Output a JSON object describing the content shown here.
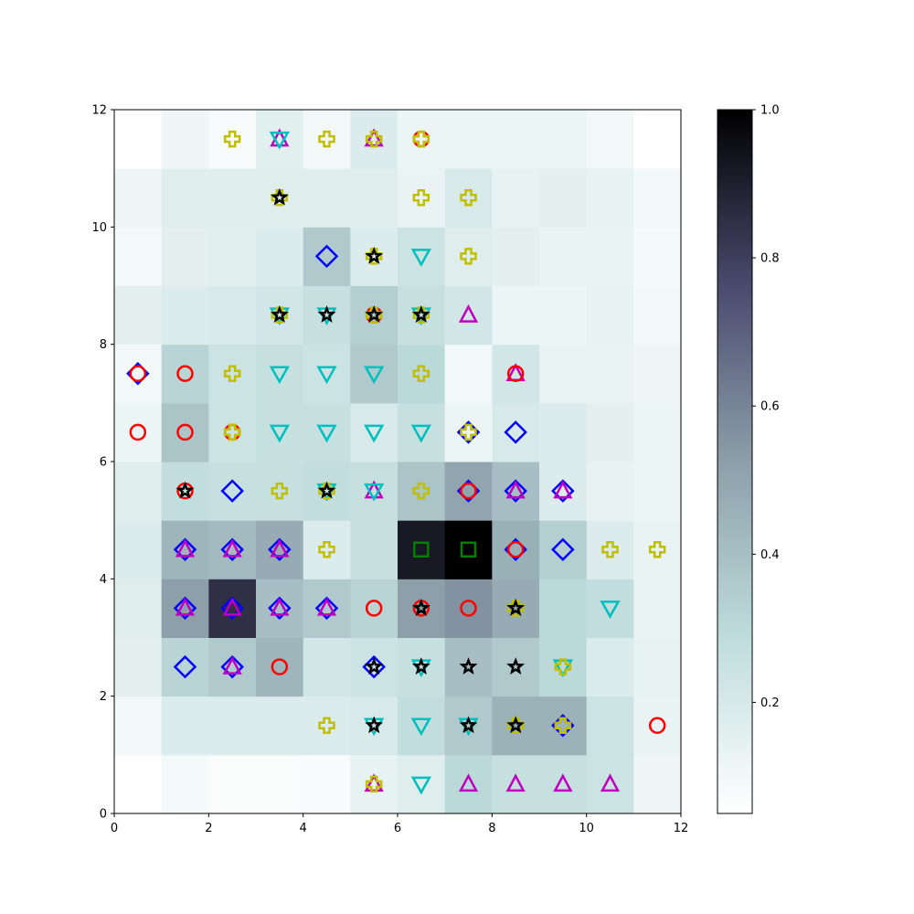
{
  "chart_data": {
    "type": "heatmap",
    "title": "",
    "xlabel": "",
    "ylabel": "",
    "xlim": [
      0,
      12
    ],
    "ylim": [
      0,
      12
    ],
    "xticks": [
      "0",
      "2",
      "4",
      "6",
      "8",
      "10",
      "12"
    ],
    "yticks": [
      "0",
      "2",
      "4",
      "6",
      "8",
      "10",
      "12"
    ],
    "colormap": "bone_r",
    "colorbar": {
      "range": [
        0.05,
        1.0
      ],
      "ticks": [
        "0.2",
        "0.4",
        "0.6",
        "0.8",
        "1.0"
      ],
      "tick_values": [
        0.2,
        0.4,
        0.6,
        0.8,
        1.0
      ]
    },
    "grid": false,
    "rows_bottom_to_top": [
      [
        0.05,
        0.09,
        0.07,
        0.07,
        0.08,
        0.14,
        0.17,
        0.3,
        0.26,
        0.26,
        0.24,
        0.11
      ],
      [
        0.1,
        0.18,
        0.18,
        0.18,
        0.18,
        0.2,
        0.28,
        0.36,
        0.45,
        0.45,
        0.24,
        0.13
      ],
      [
        0.15,
        0.32,
        0.36,
        0.44,
        0.22,
        0.24,
        0.26,
        0.4,
        0.36,
        0.3,
        0.18,
        0.14
      ],
      [
        0.17,
        0.52,
        0.85,
        0.4,
        0.36,
        0.32,
        0.52,
        0.56,
        0.48,
        0.3,
        0.28,
        0.13
      ],
      [
        0.18,
        0.44,
        0.42,
        0.48,
        0.18,
        0.26,
        0.92,
        1.0,
        0.46,
        0.34,
        0.18,
        0.13
      ],
      [
        0.17,
        0.28,
        0.26,
        0.26,
        0.28,
        0.26,
        0.38,
        0.5,
        0.4,
        0.18,
        0.14,
        0.12
      ],
      [
        0.12,
        0.38,
        0.24,
        0.26,
        0.26,
        0.2,
        0.26,
        0.12,
        0.2,
        0.18,
        0.15,
        0.12
      ],
      [
        0.1,
        0.32,
        0.24,
        0.26,
        0.24,
        0.36,
        0.3,
        0.1,
        0.22,
        0.13,
        0.13,
        0.11
      ],
      [
        0.15,
        0.18,
        0.2,
        0.22,
        0.26,
        0.34,
        0.26,
        0.22,
        0.12,
        0.12,
        0.14,
        0.1
      ],
      [
        0.09,
        0.15,
        0.16,
        0.18,
        0.36,
        0.18,
        0.24,
        0.17,
        0.15,
        0.13,
        0.13,
        0.09
      ],
      [
        0.11,
        0.17,
        0.17,
        0.17,
        0.17,
        0.17,
        0.13,
        0.2,
        0.14,
        0.15,
        0.14,
        0.1
      ],
      [
        0.05,
        0.11,
        0.08,
        0.16,
        0.1,
        0.18,
        0.12,
        0.12,
        0.12,
        0.12,
        0.1,
        0.05
      ]
    ],
    "markers": [
      {
        "type": "cross",
        "points": [
          [
            2.5,
            11.5
          ],
          [
            4.5,
            11.5
          ],
          [
            5.5,
            11.5
          ],
          [
            6.5,
            11.5
          ],
          [
            3.5,
            10.5
          ],
          [
            6.5,
            10.5
          ],
          [
            7.5,
            10.5
          ],
          [
            5.5,
            9.5
          ],
          [
            7.5,
            9.5
          ],
          [
            3.5,
            8.5
          ],
          [
            5.5,
            8.5
          ],
          [
            6.5,
            8.5
          ],
          [
            2.5,
            7.5
          ],
          [
            6.5,
            7.5
          ],
          [
            2.5,
            6.5
          ],
          [
            7.5,
            6.5
          ],
          [
            3.5,
            5.5
          ],
          [
            4.5,
            5.5
          ],
          [
            6.5,
            5.5
          ],
          [
            4.5,
            4.5
          ],
          [
            10.5,
            4.5
          ],
          [
            11.5,
            4.5
          ],
          [
            8.5,
            3.5
          ],
          [
            9.5,
            2.5
          ],
          [
            4.5,
            1.5
          ],
          [
            8.5,
            1.5
          ],
          [
            9.5,
            1.5
          ],
          [
            5.5,
            0.5
          ]
        ]
      },
      {
        "type": "triangle_down",
        "points": [
          [
            3.5,
            11.5
          ],
          [
            6.5,
            9.5
          ],
          [
            3.5,
            8.5
          ],
          [
            4.5,
            8.5
          ],
          [
            6.5,
            8.5
          ],
          [
            3.5,
            7.5
          ],
          [
            4.5,
            7.5
          ],
          [
            5.5,
            7.5
          ],
          [
            3.5,
            6.5
          ],
          [
            4.5,
            6.5
          ],
          [
            5.5,
            6.5
          ],
          [
            6.5,
            6.5
          ],
          [
            4.5,
            5.5
          ],
          [
            5.5,
            5.5
          ],
          [
            10.5,
            3.5
          ],
          [
            6.5,
            2.5
          ],
          [
            9.5,
            2.5
          ],
          [
            5.5,
            1.5
          ],
          [
            6.5,
            1.5
          ],
          [
            7.5,
            1.5
          ],
          [
            6.5,
            0.5
          ]
        ]
      },
      {
        "type": "triangle_up",
        "points": [
          [
            3.5,
            11.5
          ],
          [
            5.5,
            11.5
          ],
          [
            7.5,
            8.5
          ],
          [
            8.5,
            7.5
          ],
          [
            5.5,
            5.5
          ],
          [
            8.5,
            5.5
          ],
          [
            9.5,
            5.5
          ],
          [
            1.5,
            4.5
          ],
          [
            2.5,
            4.5
          ],
          [
            3.5,
            4.5
          ],
          [
            1.5,
            3.5
          ],
          [
            2.5,
            3.5
          ],
          [
            3.5,
            3.5
          ],
          [
            4.5,
            3.5
          ],
          [
            2.5,
            2.5
          ],
          [
            5.5,
            0.5
          ],
          [
            7.5,
            0.5
          ],
          [
            8.5,
            0.5
          ],
          [
            9.5,
            0.5
          ],
          [
            10.5,
            0.5
          ]
        ]
      },
      {
        "type": "diamond",
        "points": [
          [
            4.5,
            9.5
          ],
          [
            0.5,
            7.5
          ],
          [
            7.5,
            6.5
          ],
          [
            8.5,
            6.5
          ],
          [
            2.5,
            5.5
          ],
          [
            7.5,
            5.5
          ],
          [
            8.5,
            5.5
          ],
          [
            9.5,
            5.5
          ],
          [
            1.5,
            4.5
          ],
          [
            2.5,
            4.5
          ],
          [
            3.5,
            4.5
          ],
          [
            8.5,
            4.5
          ],
          [
            9.5,
            4.5
          ],
          [
            1.5,
            3.5
          ],
          [
            2.5,
            3.5
          ],
          [
            3.5,
            3.5
          ],
          [
            4.5,
            3.5
          ],
          [
            1.5,
            2.5
          ],
          [
            2.5,
            2.5
          ],
          [
            5.5,
            2.5
          ],
          [
            9.5,
            1.5
          ]
        ]
      },
      {
        "type": "circle",
        "points": [
          [
            6.5,
            11.5
          ],
          [
            5.5,
            8.5
          ],
          [
            0.5,
            7.5
          ],
          [
            1.5,
            7.5
          ],
          [
            8.5,
            7.5
          ],
          [
            0.5,
            6.5
          ],
          [
            1.5,
            6.5
          ],
          [
            2.5,
            6.5
          ],
          [
            1.5,
            5.5
          ],
          [
            7.5,
            5.5
          ],
          [
            8.5,
            4.5
          ],
          [
            5.5,
            3.5
          ],
          [
            6.5,
            3.5
          ],
          [
            7.5,
            3.5
          ],
          [
            3.5,
            2.5
          ],
          [
            11.5,
            1.5
          ]
        ]
      },
      {
        "type": "square",
        "points": [
          [
            6.5,
            4.5
          ],
          [
            7.5,
            4.5
          ]
        ]
      },
      {
        "type": "star",
        "points": [
          [
            3.5,
            10.5
          ],
          [
            5.5,
            9.5
          ],
          [
            3.5,
            8.5
          ],
          [
            4.5,
            8.5
          ],
          [
            5.5,
            8.5
          ],
          [
            6.5,
            8.5
          ],
          [
            1.5,
            5.5
          ],
          [
            4.5,
            5.5
          ],
          [
            6.5,
            3.5
          ],
          [
            8.5,
            3.5
          ],
          [
            5.5,
            2.5
          ],
          [
            6.5,
            2.5
          ],
          [
            7.5,
            2.5
          ],
          [
            8.5,
            2.5
          ],
          [
            5.5,
            1.5
          ],
          [
            7.5,
            1.5
          ],
          [
            8.5,
            1.5
          ]
        ]
      }
    ]
  },
  "colors": {
    "cross": "#bfbf00",
    "triangle_down": "#00bfbf",
    "triangle_up": "#bf00bf",
    "diamond": "#0000ff",
    "circle": "#ff0000",
    "square": "#008000",
    "star": "#000000"
  }
}
